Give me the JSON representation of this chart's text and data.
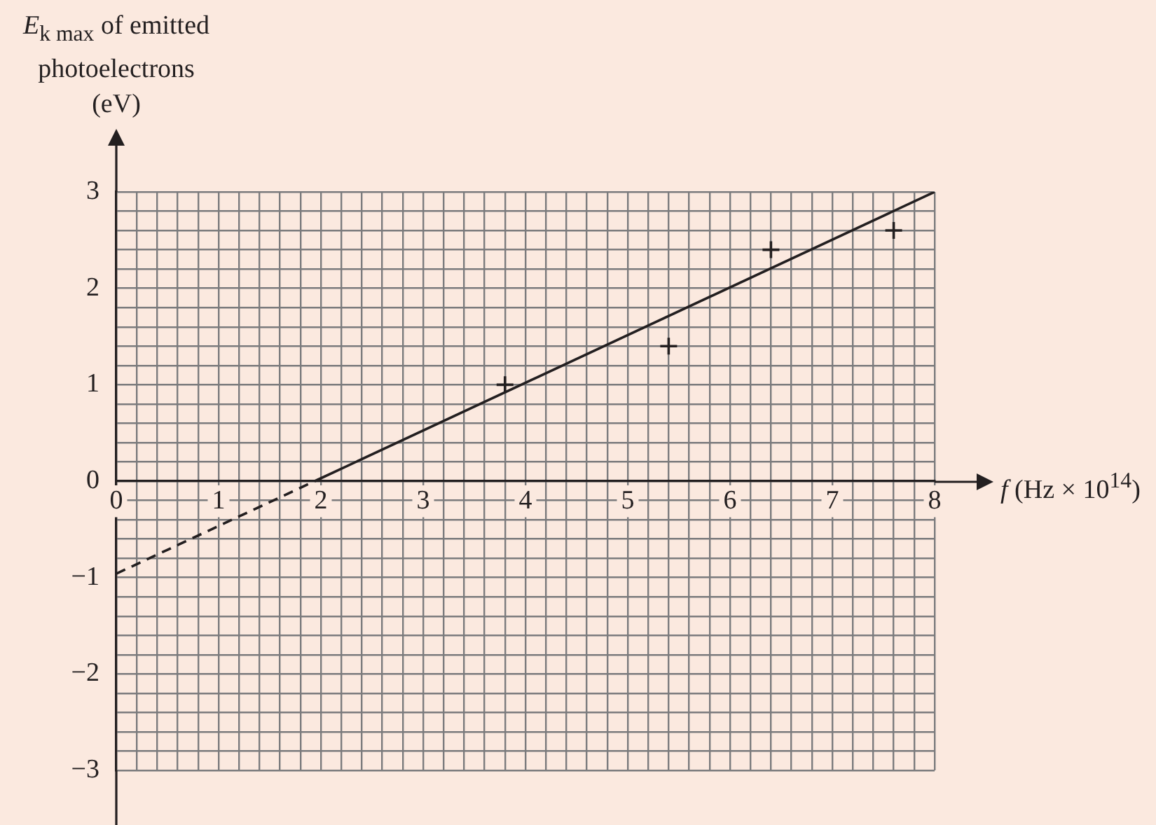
{
  "chart_data": {
    "type": "scatter",
    "xlabel": "f (Hz × 10$^{14}$)",
    "ylabel": "E$_{k max}$ of emitted photoelectrons (eV)",
    "xlim": [
      0,
      8
    ],
    "ylim": [
      -3,
      3
    ],
    "xticks": [
      0,
      {
        "value": 0.2,
        "label": null
      },
      {
        "value": 0.4,
        "label": null
      },
      {
        "value": 0.6,
        "label": null
      },
      {
        "value": 0.8,
        "label": null
      },
      1,
      {
        "value": 1.2,
        "label": null
      },
      {
        "value": 1.4,
        "label": null
      },
      {
        "value": 1.6,
        "label": null
      },
      {
        "value": 1.8,
        "label": null
      },
      2,
      {
        "value": 2.2,
        "label": null
      },
      {
        "value": 2.4,
        "label": null
      },
      {
        "value": 2.6,
        "label": null
      },
      {
        "value": 2.8,
        "label": null
      },
      3,
      {
        "value": 3.2,
        "label": null
      },
      {
        "value": 3.4,
        "label": null
      },
      {
        "value": 3.6,
        "label": null
      },
      {
        "value": 3.8,
        "label": null
      },
      4,
      {
        "value": 4.2,
        "label": null
      },
      {
        "value": 4.4,
        "label": null
      },
      {
        "value": 4.6,
        "label": null
      },
      {
        "value": 4.8,
        "label": null
      },
      5,
      {
        "value": 5.2,
        "label": null
      },
      {
        "value": 5.4,
        "label": null
      },
      {
        "value": 5.6,
        "label": null
      },
      {
        "value": 5.8,
        "label": null
      },
      6,
      {
        "value": 6.2,
        "label": null
      },
      {
        "value": 6.4,
        "label": null
      },
      {
        "value": 6.6,
        "label": null
      },
      {
        "value": 6.8,
        "label": null
      },
      7,
      {
        "value": 7.2,
        "label": null
      },
      {
        "value": 7.4,
        "label": null
      },
      {
        "value": 7.6,
        "label": null
      },
      {
        "value": 7.8,
        "label": null
      },
      8
    ],
    "yticks": [
      {
        "value": -3,
        "label": "−3"
      },
      {
        "value": -2.8,
        "label": null
      },
      {
        "value": -2.6,
        "label": null
      },
      {
        "value": -2.4,
        "label": null
      },
      {
        "value": -2.2,
        "label": null
      },
      {
        "value": -2,
        "label": "−2"
      },
      {
        "value": -1.8,
        "label": null
      },
      {
        "value": -1.6,
        "label": null
      },
      {
        "value": -1.4,
        "label": null
      },
      {
        "value": -1.2,
        "label": null
      },
      {
        "value": -1,
        "label": "−1"
      },
      {
        "value": -0.8,
        "label": null
      },
      {
        "value": -0.6,
        "label": null
      },
      {
        "value": -0.4,
        "label": null
      },
      {
        "value": -0.2,
        "label": null
      },
      0,
      {
        "value": 0.2,
        "label": null
      },
      {
        "value": 0.4,
        "label": null
      },
      {
        "value": 0.6,
        "label": null
      },
      {
        "value": 0.8,
        "label": null
      },
      1,
      {
        "value": 1.2,
        "label": null
      },
      {
        "value": 1.4,
        "label": null
      },
      {
        "value": 1.6,
        "label": null
      },
      {
        "value": 1.8,
        "label": null
      },
      2,
      {
        "value": 2.2,
        "label": null
      },
      {
        "value": 2.4,
        "label": null
      },
      {
        "value": 2.6,
        "label": null
      },
      {
        "value": 2.8,
        "label": null
      },
      3
    ],
    "grid": true,
    "series": [
      {
        "type": "line",
        "x": [
          0,
          1.94
        ],
        "values": [
          -0.96,
          0
        ],
        "color": "#231f20",
        "line_style": "dashed",
        "marker": "none"
      },
      {
        "type": "line",
        "x": [
          1.94,
          8
        ],
        "values": [
          0,
          3
        ],
        "color": "#231f20",
        "line_style": "solid",
        "marker": "none"
      },
      {
        "type": "scatter",
        "x": [
          3.8,
          5.4,
          6.4,
          7.6
        ],
        "values": [
          1.0,
          1.4,
          2.4,
          2.6
        ],
        "color": "#231f20",
        "marker": "cross"
      }
    ]
  }
}
